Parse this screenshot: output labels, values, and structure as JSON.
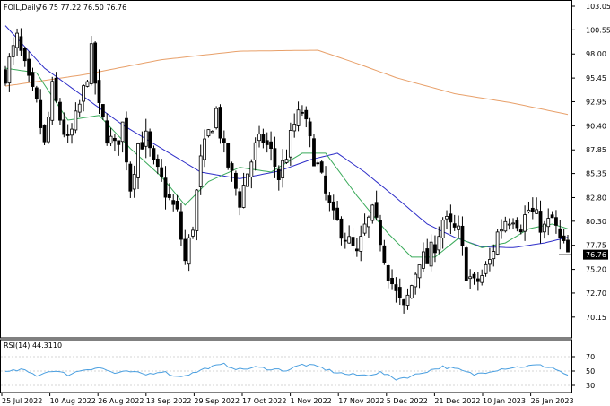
{
  "header": {
    "symbol": "FOIL,Daily",
    "ohlc": "76.75 77.22 76.50 76.76"
  },
  "rsi_header": {
    "label": "RSI(14) 44.3110"
  },
  "current_price_label": "76.76",
  "colors": {
    "candle": "#000000",
    "sma_slow": "#e8a06a",
    "sma_mid": "#2d2dc8",
    "sma_fast": "#3aaa5a",
    "rsi_line": "#4a9fe0",
    "grid": "#c8c8c8",
    "price_box": "#000000"
  },
  "chart_data": [
    {
      "type": "candlestick",
      "title": "FOIL,Daily",
      "ylim": [
        68.9,
        103.05
      ],
      "y_ticks": [
        103.05,
        100.55,
        98.0,
        95.45,
        92.95,
        90.4,
        87.85,
        85.35,
        82.8,
        80.3,
        77.75,
        75.2,
        72.7,
        70.15
      ],
      "x_ticks": [
        "25 Jul 2022",
        "10 Aug 2022",
        "26 Aug 2022",
        "13 Sep 2022",
        "29 Sep 2022",
        "17 Oct 2022",
        "1 Nov 2022",
        "17 Nov 2022",
        "5 Dec 2022",
        "21 Dec 2022",
        "10 Jan 2023",
        "26 Jan 2023"
      ],
      "close_anchors": [
        [
          0,
          96.0
        ],
        [
          3,
          99.5
        ],
        [
          6,
          94.8
        ],
        [
          8,
          92.5
        ],
        [
          10,
          88.2
        ],
        [
          12,
          94.2
        ],
        [
          14,
          91.2
        ],
        [
          16,
          88.5
        ],
        [
          18,
          91.0
        ],
        [
          20,
          94.0
        ],
        [
          22,
          98.0
        ],
        [
          24,
          92.0
        ],
        [
          26,
          89.5
        ],
        [
          28,
          88.0
        ],
        [
          30,
          90.5
        ],
        [
          32,
          84.0
        ],
        [
          34,
          88.5
        ],
        [
          36,
          89.0
        ],
        [
          38,
          86.0
        ],
        [
          40,
          84.5
        ],
        [
          42,
          82.5
        ],
        [
          44,
          81.0
        ],
        [
          46,
          76.0
        ],
        [
          48,
          80.0
        ],
        [
          50,
          86.5
        ],
        [
          52,
          89.5
        ],
        [
          54,
          92.0
        ],
        [
          56,
          87.5
        ],
        [
          58,
          85.0
        ],
        [
          60,
          82.5
        ],
        [
          62,
          85.5
        ],
        [
          64,
          88.0
        ],
        [
          66,
          89.0
        ],
        [
          68,
          87.5
        ],
        [
          70,
          85.0
        ],
        [
          72,
          87.5
        ],
        [
          74,
          90.5
        ],
        [
          76,
          92.0
        ],
        [
          78,
          88.5
        ],
        [
          80,
          86.0
        ],
        [
          82,
          83.0
        ],
        [
          84,
          80.5
        ],
        [
          86,
          79.5
        ],
        [
          88,
          78.0
        ],
        [
          90,
          76.5
        ],
        [
          92,
          79.5
        ],
        [
          94,
          81.0
        ],
        [
          96,
          78.5
        ],
        [
          98,
          75.0
        ],
        [
          100,
          72.5
        ],
        [
          102,
          70.8
        ],
        [
          104,
          73.5
        ],
        [
          106,
          76.5
        ],
        [
          108,
          76.0
        ],
        [
          110,
          78.0
        ],
        [
          112,
          80.5
        ],
        [
          114,
          79.5
        ],
        [
          116,
          79.0
        ],
        [
          118,
          75.0
        ],
        [
          120,
          73.5
        ],
        [
          122,
          74.5
        ],
        [
          124,
          76.0
        ],
        [
          126,
          79.0
        ],
        [
          128,
          80.5
        ],
        [
          130,
          81.0
        ],
        [
          132,
          80.0
        ],
        [
          134,
          81.5
        ],
        [
          136,
          80.5
        ],
        [
          138,
          79.5
        ],
        [
          140,
          80.5
        ],
        [
          142,
          78.2
        ],
        [
          144,
          76.76
        ]
      ],
      "sma_slow": [
        [
          0,
          94.6
        ],
        [
          20,
          95.8
        ],
        [
          40,
          97.4
        ],
        [
          60,
          98.3
        ],
        [
          80,
          98.4
        ],
        [
          90,
          97.0
        ],
        [
          100,
          95.5
        ],
        [
          115,
          93.8
        ],
        [
          130,
          92.8
        ],
        [
          144,
          91.6
        ]
      ],
      "sma_mid": [
        [
          0,
          101.0
        ],
        [
          10,
          96.5
        ],
        [
          20,
          93.5
        ],
        [
          30,
          90.5
        ],
        [
          40,
          88.0
        ],
        [
          50,
          85.5
        ],
        [
          60,
          84.8
        ],
        [
          70,
          85.6
        ],
        [
          78,
          86.8
        ],
        [
          85,
          87.5
        ],
        [
          92,
          85.5
        ],
        [
          100,
          82.8
        ],
        [
          108,
          80.0
        ],
        [
          115,
          78.6
        ],
        [
          122,
          77.6
        ],
        [
          130,
          77.5
        ],
        [
          138,
          78.0
        ],
        [
          144,
          78.6
        ]
      ],
      "sma_fast": [
        [
          0,
          96.5
        ],
        [
          8,
          96.0
        ],
        [
          16,
          91.0
        ],
        [
          24,
          91.5
        ],
        [
          32,
          88.0
        ],
        [
          40,
          85.0
        ],
        [
          46,
          82.0
        ],
        [
          52,
          84.5
        ],
        [
          60,
          86.0
        ],
        [
          68,
          85.5
        ],
        [
          76,
          87.5
        ],
        [
          82,
          87.5
        ],
        [
          90,
          83.0
        ],
        [
          98,
          79.0
        ],
        [
          104,
          76.5
        ],
        [
          110,
          76.5
        ],
        [
          116,
          78.5
        ],
        [
          122,
          77.5
        ],
        [
          128,
          78.0
        ],
        [
          134,
          79.5
        ],
        [
          140,
          80.0
        ],
        [
          144,
          79.5
        ]
      ]
    },
    {
      "type": "line",
      "title": "RSI(14) 44.3110",
      "ylim": [
        0,
        100
      ],
      "y_ticks": [
        70,
        50,
        30
      ],
      "rsi_anchors": [
        [
          0,
          48
        ],
        [
          4,
          52
        ],
        [
          8,
          44
        ],
        [
          12,
          51
        ],
        [
          16,
          45
        ],
        [
          20,
          52
        ],
        [
          24,
          55
        ],
        [
          28,
          47
        ],
        [
          32,
          49
        ],
        [
          36,
          45
        ],
        [
          40,
          50
        ],
        [
          44,
          42
        ],
        [
          48,
          47
        ],
        [
          52,
          55
        ],
        [
          56,
          59
        ],
        [
          60,
          52
        ],
        [
          64,
          55
        ],
        [
          68,
          53
        ],
        [
          72,
          51
        ],
        [
          76,
          59
        ],
        [
          80,
          56
        ],
        [
          84,
          49
        ],
        [
          88,
          45
        ],
        [
          92,
          44
        ],
        [
          96,
          48
        ],
        [
          100,
          39
        ],
        [
          104,
          43
        ],
        [
          108,
          50
        ],
        [
          112,
          56
        ],
        [
          116,
          52
        ],
        [
          120,
          45
        ],
        [
          124,
          50
        ],
        [
          128,
          54
        ],
        [
          132,
          56
        ],
        [
          136,
          58
        ],
        [
          140,
          55
        ],
        [
          144,
          44
        ]
      ]
    }
  ]
}
